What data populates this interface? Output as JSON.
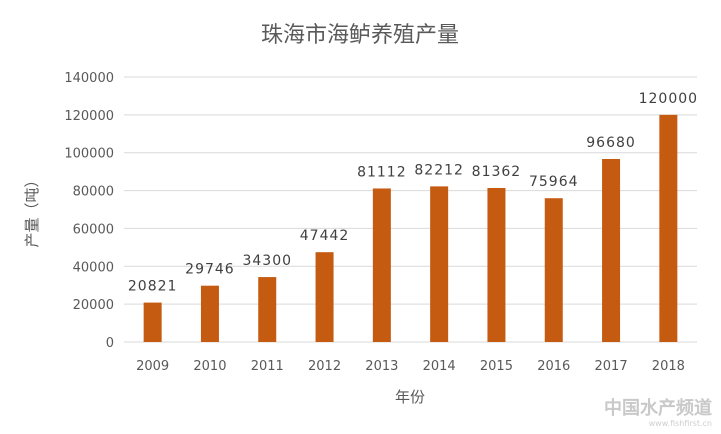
{
  "chart_data": {
    "type": "bar",
    "title": "珠海市海鲈养殖产量",
    "xlabel": "年份",
    "ylabel": "产量（吨）",
    "categories": [
      "2009",
      "2010",
      "2011",
      "2012",
      "2013",
      "2014",
      "2015",
      "2016",
      "2017",
      "2018"
    ],
    "values": [
      20821,
      29746,
      34300,
      47442,
      81112,
      82212,
      81362,
      75964,
      96680,
      120000
    ],
    "data_labels": [
      "20821",
      "29746",
      "34300",
      "47442",
      "81112",
      "82212",
      "81362",
      "75964",
      "96680",
      "120000"
    ],
    "ylim": [
      0,
      140000
    ],
    "yticks": [
      0,
      20000,
      40000,
      60000,
      80000,
      100000,
      120000,
      140000
    ],
    "ytick_labels": [
      "0",
      "20000",
      "40000",
      "60000",
      "80000",
      "100000",
      "120000",
      "140000"
    ],
    "grid": true,
    "legend": "none",
    "bar_color": "#c55a11",
    "grid_color": "#d9d9d9"
  },
  "watermark": {
    "text": "中国水产频道",
    "url": "www.fishfirst.cn"
  }
}
